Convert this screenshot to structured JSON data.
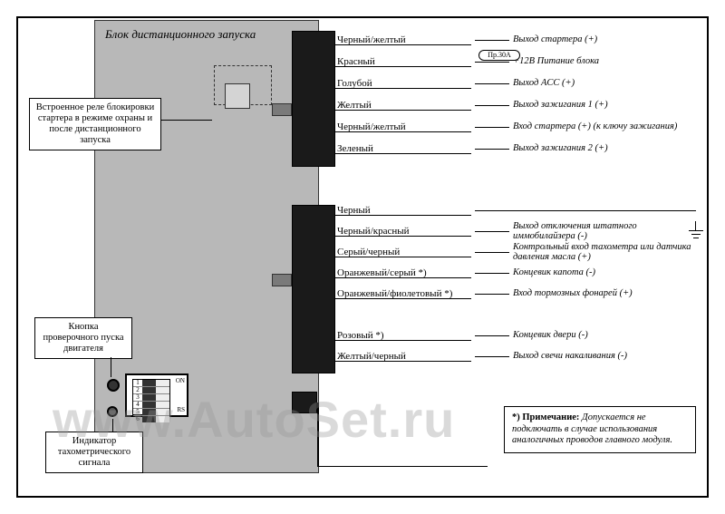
{
  "module_title": "Блок дистанционного запуска",
  "callouts": {
    "relay": "Встроенное реле блокировки стартера в режиме охраны и после дистанционного запуска",
    "button": "Кнопка проверочного пуска двигателя",
    "indicator": "Индикатор тахометрического сигнала"
  },
  "fuse_label": "Пр.30А",
  "wires_top": [
    {
      "name": "Черный/желтый",
      "desc": "Выход стартера (+)"
    },
    {
      "name": "Красный",
      "desc": "+12В Питание блока"
    },
    {
      "name": "Голубой",
      "desc": "Выход ACC (+)"
    },
    {
      "name": "Желтый",
      "desc": "Выход зажигания 1 (+)"
    },
    {
      "name": "Черный/желтый",
      "desc": "Вход стартера (+) (к ключу зажигания)"
    },
    {
      "name": "Зеленый",
      "desc": "Выход зажигания 2 (+)"
    }
  ],
  "wires_mid": [
    {
      "name": "Черный",
      "desc": ""
    },
    {
      "name": "Черный/красный",
      "desc": "Выход отключения штатного иммобилайзера (-)"
    },
    {
      "name": "Серый/черный",
      "desc": "Контрольный вход тахометра или датчика давления масла (+)"
    },
    {
      "name": "Оранжевый/серый *)",
      "desc": "Концевик капота (-)"
    },
    {
      "name": "Оранжевый/фиолетовый *)",
      "desc": "Вход тормозных фонарей (+)"
    },
    {
      "name": "",
      "desc": ""
    },
    {
      "name": "Розовый *)",
      "desc": "Концевик двери (-)"
    },
    {
      "name": "Желтый/черный",
      "desc": "Выход свечи накаливания (-)"
    }
  ],
  "note": {
    "prefix": "*) Примечание:",
    "text": " Допускается не подключать в случае использования аналогичных проводов главного модуля."
  },
  "dip": {
    "labels_right": [
      "ON",
      "RS"
    ],
    "positions": [
      "left",
      "left",
      "left",
      "left",
      "left",
      "left"
    ]
  },
  "watermark": "www.AutoSet.ru",
  "colors": {
    "module_bg": "#b8b8b8",
    "connector": "#1a1a1a",
    "frame": "#000000"
  }
}
